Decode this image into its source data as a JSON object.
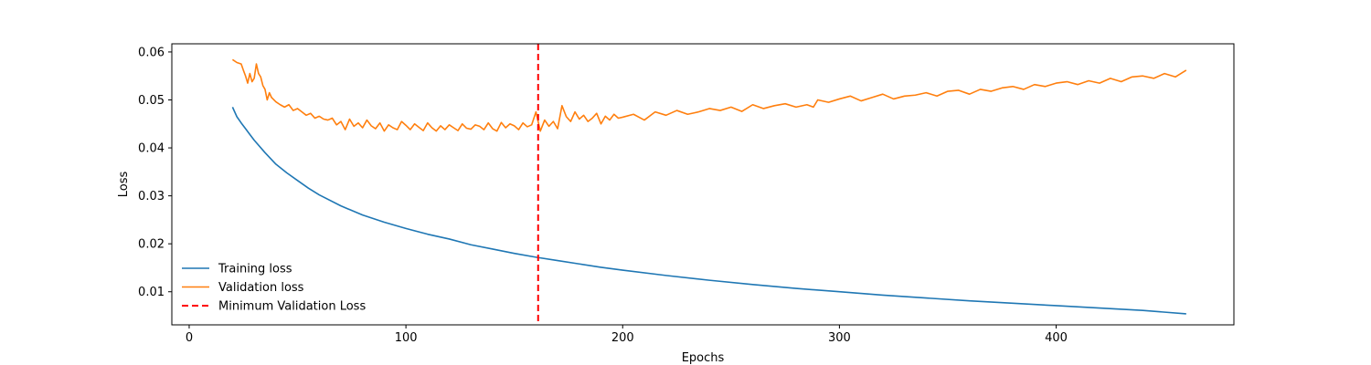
{
  "chart_data": {
    "type": "line",
    "title": "",
    "xlabel": "Epochs",
    "ylabel": "Loss",
    "xlim": [
      -8,
      482
    ],
    "ylim": [
      0.0031,
      0.0617
    ],
    "x_ticks": [
      0,
      100,
      200,
      300,
      400
    ],
    "x_tick_labels": [
      "0",
      "100",
      "200",
      "300",
      "400"
    ],
    "y_ticks": [
      0.01,
      0.02,
      0.03,
      0.04,
      0.05,
      0.06
    ],
    "y_tick_labels": [
      "0.01",
      "0.02",
      "0.03",
      "0.04",
      "0.05",
      "0.06"
    ],
    "grid": false,
    "legend_position": "lower-left",
    "series": [
      {
        "name": "Training loss",
        "color": "#1f77b4",
        "style": "solid",
        "x": [
          20,
          22,
          24,
          26,
          28,
          30,
          35,
          40,
          45,
          50,
          55,
          60,
          70,
          80,
          90,
          100,
          110,
          120,
          130,
          140,
          150,
          160,
          170,
          180,
          190,
          200,
          220,
          240,
          260,
          280,
          300,
          320,
          340,
          360,
          380,
          400,
          420,
          440,
          460
        ],
        "y": [
          0.0485,
          0.0465,
          0.0452,
          0.044,
          0.0428,
          0.0416,
          0.039,
          0.0366,
          0.0348,
          0.0332,
          0.0316,
          0.0302,
          0.0279,
          0.026,
          0.0245,
          0.0232,
          0.022,
          0.021,
          0.0198,
          0.0189,
          0.018,
          0.0172,
          0.0165,
          0.0158,
          0.0151,
          0.0145,
          0.0134,
          0.0124,
          0.0115,
          0.0107,
          0.01,
          0.0093,
          0.0087,
          0.0081,
          0.0076,
          0.0071,
          0.0066,
          0.0061,
          0.0054
        ]
      },
      {
        "name": "Validation loss",
        "color": "#ff7f0e",
        "style": "solid",
        "x": [
          20,
          22,
          24,
          25,
          26,
          27,
          28,
          29,
          30,
          31,
          32,
          33,
          34,
          35,
          36,
          37,
          38,
          40,
          42,
          44,
          46,
          48,
          50,
          52,
          54,
          56,
          58,
          60,
          62,
          64,
          66,
          68,
          70,
          72,
          74,
          76,
          78,
          80,
          82,
          84,
          86,
          88,
          90,
          92,
          94,
          96,
          98,
          100,
          102,
          104,
          106,
          108,
          110,
          112,
          114,
          116,
          118,
          120,
          122,
          124,
          126,
          128,
          130,
          132,
          134,
          136,
          138,
          140,
          142,
          144,
          146,
          148,
          150,
          152,
          154,
          156,
          158,
          160,
          162,
          164,
          166,
          168,
          170,
          172,
          174,
          176,
          178,
          180,
          182,
          184,
          186,
          188,
          190,
          192,
          194,
          196,
          198,
          200,
          205,
          210,
          215,
          220,
          225,
          230,
          235,
          240,
          245,
          250,
          255,
          260,
          265,
          270,
          275,
          280,
          285,
          288,
          290,
          295,
          300,
          305,
          310,
          315,
          320,
          325,
          330,
          335,
          340,
          345,
          350,
          355,
          360,
          365,
          370,
          375,
          380,
          385,
          390,
          395,
          400,
          405,
          410,
          415,
          420,
          425,
          430,
          435,
          440,
          445,
          450,
          455,
          460
        ],
        "y": [
          0.0584,
          0.0578,
          0.0575,
          0.0562,
          0.055,
          0.0535,
          0.0555,
          0.0538,
          0.0545,
          0.0575,
          0.0555,
          0.0548,
          0.053,
          0.0522,
          0.05,
          0.0515,
          0.0505,
          0.0496,
          0.049,
          0.0485,
          0.049,
          0.0478,
          0.0482,
          0.0475,
          0.0468,
          0.0472,
          0.0462,
          0.0466,
          0.046,
          0.0458,
          0.0462,
          0.0448,
          0.0455,
          0.0438,
          0.046,
          0.0445,
          0.0452,
          0.0442,
          0.0458,
          0.0446,
          0.044,
          0.0452,
          0.0435,
          0.0448,
          0.0442,
          0.0438,
          0.0455,
          0.0447,
          0.0438,
          0.045,
          0.0443,
          0.0436,
          0.0452,
          0.0442,
          0.0435,
          0.0446,
          0.0438,
          0.0448,
          0.0442,
          0.0436,
          0.045,
          0.0441,
          0.0439,
          0.0448,
          0.0445,
          0.0438,
          0.0452,
          0.044,
          0.0435,
          0.0453,
          0.0442,
          0.045,
          0.0446,
          0.0438,
          0.0452,
          0.0444,
          0.0448,
          0.0475,
          0.0435,
          0.0458,
          0.0445,
          0.0455,
          0.044,
          0.0488,
          0.0465,
          0.0455,
          0.0475,
          0.046,
          0.0468,
          0.0455,
          0.0462,
          0.0472,
          0.045,
          0.0466,
          0.0458,
          0.047,
          0.0462,
          0.0464,
          0.047,
          0.0458,
          0.0475,
          0.0468,
          0.0478,
          0.047,
          0.0475,
          0.0482,
          0.0478,
          0.0485,
          0.0476,
          0.049,
          0.0482,
          0.0488,
          0.0492,
          0.0485,
          0.049,
          0.0485,
          0.05,
          0.0495,
          0.0502,
          0.0508,
          0.0498,
          0.0505,
          0.0512,
          0.0502,
          0.0508,
          0.051,
          0.0515,
          0.0508,
          0.0518,
          0.052,
          0.0512,
          0.0522,
          0.0518,
          0.0525,
          0.0528,
          0.0522,
          0.0532,
          0.0528,
          0.0535,
          0.0538,
          0.0532,
          0.054,
          0.0535,
          0.0545,
          0.0538,
          0.0548,
          0.055,
          0.0545,
          0.0555,
          0.0548,
          0.0562
        ]
      }
    ],
    "vlines": [
      {
        "name": "Minimum Validation Loss",
        "x": 161,
        "color": "#ff0000",
        "style": "dashed"
      }
    ]
  }
}
